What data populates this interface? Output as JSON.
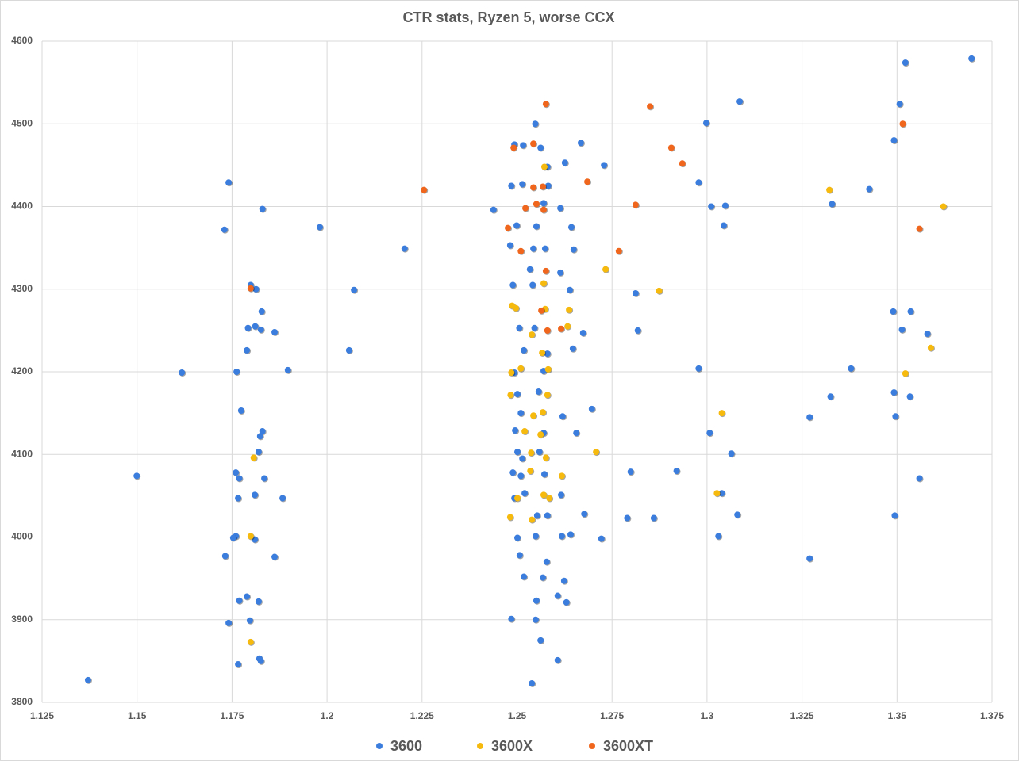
{
  "chart_data": {
    "type": "scatter",
    "title": "CTR stats, Ryzen 5, worse CCX",
    "xlim": [
      1.125,
      1.375
    ],
    "xticks": [
      1.125,
      1.15,
      1.175,
      1.2,
      1.225,
      1.25,
      1.275,
      1.3,
      1.325,
      1.35,
      1.375
    ],
    "ylim": [
      3800,
      4600
    ],
    "yticks": [
      3800,
      3900,
      4000,
      4100,
      4200,
      4300,
      4400,
      4500,
      4600
    ],
    "grid": true,
    "legend": "bottom",
    "series": [
      {
        "name": "3600",
        "color": "#3b7ddd",
        "x": [
          1.1371,
          1.1499,
          1.1618,
          1.1741,
          1.173,
          1.183,
          1.1981,
          1.2204,
          1.2071,
          1.2058,
          1.1897,
          1.1762,
          1.1799,
          1.1813,
          1.1828,
          1.1792,
          1.1811,
          1.1826,
          1.1862,
          1.1789,
          1.1774,
          1.183,
          1.1824,
          1.182,
          1.176,
          1.1769,
          1.1835,
          1.181,
          1.1766,
          1.1883,
          1.176,
          1.1753,
          1.181,
          1.1732,
          1.1862,
          1.1789,
          1.1769,
          1.182,
          1.1741,
          1.1797,
          1.1822,
          1.1826,
          1.1766,
          1.2438,
          1.2485,
          1.2493,
          1.2548,
          1.2516,
          1.2562,
          1.258,
          1.2626,
          1.2668,
          1.2729,
          1.2514,
          1.2582,
          1.2614,
          1.257,
          1.2499,
          1.2551,
          1.2643,
          1.2482,
          1.2543,
          1.2574,
          1.2649,
          1.2534,
          1.2614,
          1.2489,
          1.2541,
          1.2639,
          1.2506,
          1.2546,
          1.2674,
          1.2518,
          1.258,
          1.2647,
          1.2493,
          1.257,
          1.2501,
          1.2557,
          1.262,
          1.2697,
          1.251,
          1.2495,
          1.257,
          1.2656,
          1.2501,
          1.2559,
          1.2514,
          1.2489,
          1.2572,
          1.251,
          1.2616,
          1.252,
          1.2493,
          1.2553,
          1.258,
          1.2677,
          1.2618,
          1.2641,
          1.2501,
          1.2549,
          1.2722,
          1.2507,
          1.2578,
          1.2518,
          1.2568,
          1.2624,
          1.2551,
          1.2607,
          1.263,
          1.2485,
          1.2549,
          1.2562,
          1.2607,
          1.2539,
          1.2998,
          1.3086,
          1.2978,
          1.3011,
          1.3048,
          1.3044,
          1.2812,
          1.2818,
          1.2978,
          1.3007,
          1.3064,
          1.3039,
          1.327,
          1.2799,
          1.292,
          1.279,
          1.286,
          1.308,
          1.303,
          1.327,
          1.3329,
          1.3427,
          1.3379,
          1.3325,
          1.3522,
          1.3696,
          1.3507,
          1.3492,
          1.349,
          1.3536,
          1.3513,
          1.358,
          1.3492,
          1.3534,
          1.3496,
          1.3559,
          1.3494
        ],
        "values": [
          3827,
          4074,
          4199,
          4429,
          4372,
          4397,
          4375,
          4349,
          4299,
          4226,
          4202,
          4200,
          4305,
          4300,
          4273,
          4253,
          4255,
          4251,
          4248,
          4226,
          4153,
          4128,
          4122,
          4103,
          4078,
          4071,
          4071,
          4051,
          4047,
          4047,
          4001,
          3999,
          3997,
          3977,
          3976,
          3928,
          3923,
          3922,
          3896,
          3899,
          3853,
          3850,
          3846,
          4396,
          4425,
          4475,
          4500,
          4474,
          4471,
          4448,
          4453,
          4477,
          4450,
          4427,
          4425,
          4398,
          4404,
          4377,
          4376,
          4375,
          4353,
          4349,
          4349,
          4348,
          4324,
          4320,
          4305,
          4305,
          4299,
          4253,
          4253,
          4247,
          4226,
          4222,
          4228,
          4199,
          4201,
          4173,
          4176,
          4146,
          4155,
          4150,
          4129,
          4126,
          4126,
          4103,
          4103,
          4095,
          4078,
          4076,
          4074,
          4051,
          4053,
          4047,
          4026,
          4026,
          4028,
          4001,
          4003,
          3999,
          4001,
          3998,
          3978,
          3970,
          3952,
          3951,
          3947,
          3923,
          3929,
          3921,
          3901,
          3900,
          3875,
          3851,
          3823,
          4501,
          4527,
          4429,
          4400,
          4401,
          4377,
          4295,
          4250,
          4204,
          4126,
          4101,
          4053,
          4145,
          4079,
          4080,
          4023,
          4023,
          4027,
          4001,
          3974,
          4403,
          4421,
          4204,
          4170,
          4574,
          4579,
          4524,
          4480,
          4273,
          4273,
          4251,
          4246,
          4175,
          4170,
          4146,
          4071,
          4026
        ]
      },
      {
        "name": "3600X",
        "color": "#f6b90e",
        "x": [
          1.1799,
          1.1799,
          1.1807,
          1.2572,
          1.2487,
          1.2497,
          1.2574,
          1.2637,
          1.2633,
          1.2539,
          1.2566,
          1.2485,
          1.251,
          1.2582,
          1.2483,
          1.258,
          1.2568,
          1.2543,
          1.252,
          1.2562,
          1.2537,
          1.2576,
          1.2535,
          1.2618,
          1.257,
          1.2501,
          1.2585,
          1.2482,
          1.2539,
          1.2733,
          1.2874,
          1.2708,
          1.3039,
          1.3026,
          1.3322,
          1.3622,
          1.3589,
          1.3522,
          1.257
        ],
        "values": [
          3873,
          4001,
          4096,
          4448,
          4280,
          4277,
          4276,
          4275,
          4255,
          4245,
          4223,
          4199,
          4204,
          4203,
          4172,
          4172,
          4151,
          4147,
          4128,
          4124,
          4102,
          4096,
          4080,
          4074,
          4051,
          4047,
          4047,
          4024,
          4021,
          4324,
          4298,
          4103,
          4150,
          4053,
          4420,
          4400,
          4229,
          4198,
          4307
        ]
      },
      {
        "name": "3600XT",
        "color": "#f0661c",
        "x": [
          1.2255,
          1.2476,
          1.251,
          1.2491,
          1.2543,
          1.2576,
          1.2543,
          1.2568,
          1.2522,
          1.2551,
          1.257,
          1.2576,
          1.2564,
          1.258,
          1.2616,
          1.1799,
          1.2685,
          1.2768,
          1.2812,
          1.285,
          1.2906,
          1.2935,
          1.3515,
          1.3559
        ],
        "values": [
          4420,
          4374,
          4346,
          4471,
          4476,
          4524,
          4423,
          4424,
          4398,
          4403,
          4396,
          4322,
          4274,
          4250,
          4252,
          4301,
          4430,
          4346,
          4402,
          4521,
          4471,
          4452,
          4500,
          4373
        ]
      }
    ]
  }
}
